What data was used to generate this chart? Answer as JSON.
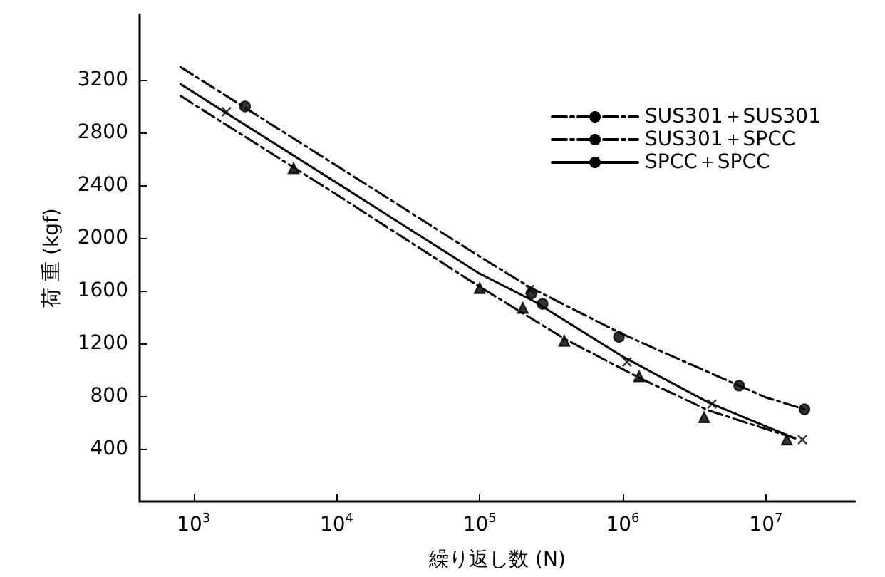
{
  "chart_data": {
    "type": "line",
    "xlabel": "繰り返し数 (N)",
    "ylabel": "荷 重 (kgf)",
    "log": "x",
    "xlim": [
      420,
      42000000
    ],
    "xticks": [
      {
        "value": 1000,
        "label": "10$^{3}$"
      },
      {
        "value": 10000,
        "label": "10$^{4}$"
      },
      {
        "value": 100000,
        "label": "10$^{5}$"
      },
      {
        "value": 1000000,
        "label": "10$^{6}$"
      },
      {
        "value": 10000000,
        "label": "10$^{7}$"
      }
    ],
    "ylim": [
      0,
      3700
    ],
    "yticks": [
      400,
      800,
      1200,
      1600,
      2000,
      2400,
      2800,
      3200
    ],
    "grid": false,
    "legend": "top right",
    "series": [
      {
        "name": "SUS301＋SUS301",
        "line_style": "dashed",
        "marker": "none",
        "color": "#000000",
        "x": [
          810,
          10000,
          100000,
          230000,
          1000000,
          3000000,
          10000000,
          18600000
        ],
        "values": [
          3300,
          2550,
          1860,
          1620,
          1270,
          1040,
          790,
          700
        ]
      },
      {
        "name": "SUS301＋SPCC",
        "line_style": "dashed",
        "marker": "none",
        "color": "#000000",
        "x": [
          810,
          10000,
          100000,
          400000,
          1300000,
          4000000,
          16000000
        ],
        "values": [
          3080,
          2330,
          1630,
          1230,
          940,
          690,
          480
        ]
      },
      {
        "name": "SPCC＋SPCC",
        "line_style": "solid",
        "marker": "none",
        "color": "#000000",
        "x": [
          810,
          10000,
          100000,
          240000,
          1000000,
          4000000,
          16000000
        ],
        "values": [
          3170,
          2420,
          1730,
          1520,
          1100,
          750,
          480
        ]
      },
      {
        "type": "scatter",
        "marker": "circle",
        "color": "#000000",
        "x": [
          2290,
          230000,
          275000,
          940000,
          6500000,
          18600000
        ],
        "values": [
          3000,
          1580,
          1500,
          1250,
          880,
          700
        ]
      },
      {
        "type": "scatter",
        "marker": "triangle",
        "color": "#000000",
        "x": [
          5000,
          100000,
          200000,
          390000,
          1300000,
          3700000,
          14000000
        ],
        "values": [
          2530,
          1620,
          1470,
          1220,
          950,
          640,
          470
        ]
      },
      {
        "type": "scatter",
        "marker": "cross",
        "color": "#000000",
        "x": [
          1700,
          224000,
          1070000,
          4200000,
          18000000
        ],
        "values": [
          2960,
          1610,
          1060,
          740,
          470
        ]
      }
    ]
  }
}
